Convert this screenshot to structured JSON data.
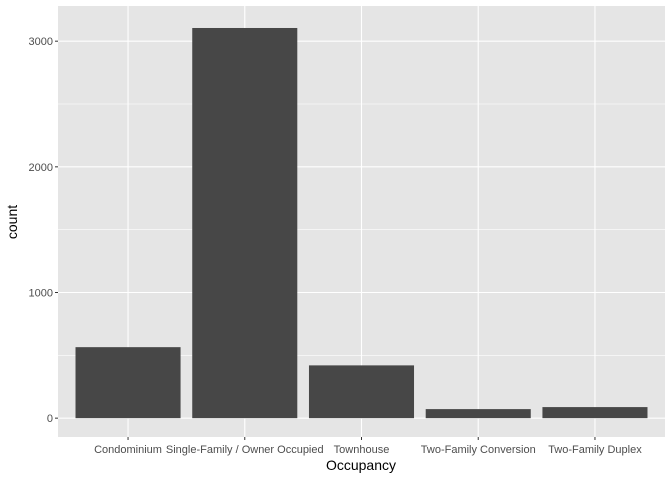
{
  "chart_data": {
    "type": "bar",
    "categories": [
      "Condominium",
      "Single-Family / Owner Occupied",
      "Townhouse",
      "Two-Family Conversion",
      "Two-Family Duplex"
    ],
    "values": [
      565,
      3105,
      420,
      72,
      88
    ],
    "xlabel": "Occupancy",
    "ylabel": "count",
    "ylim": [
      -150,
      3280
    ],
    "yticks": [
      0,
      1000,
      2000,
      3000
    ],
    "ytick_labels": [
      "0",
      "1000",
      "2000",
      "3000"
    ],
    "grid": true,
    "colors": {
      "bar": "#474747",
      "panel_background": "#e5e5e5",
      "gridline": "#ffffff"
    }
  }
}
